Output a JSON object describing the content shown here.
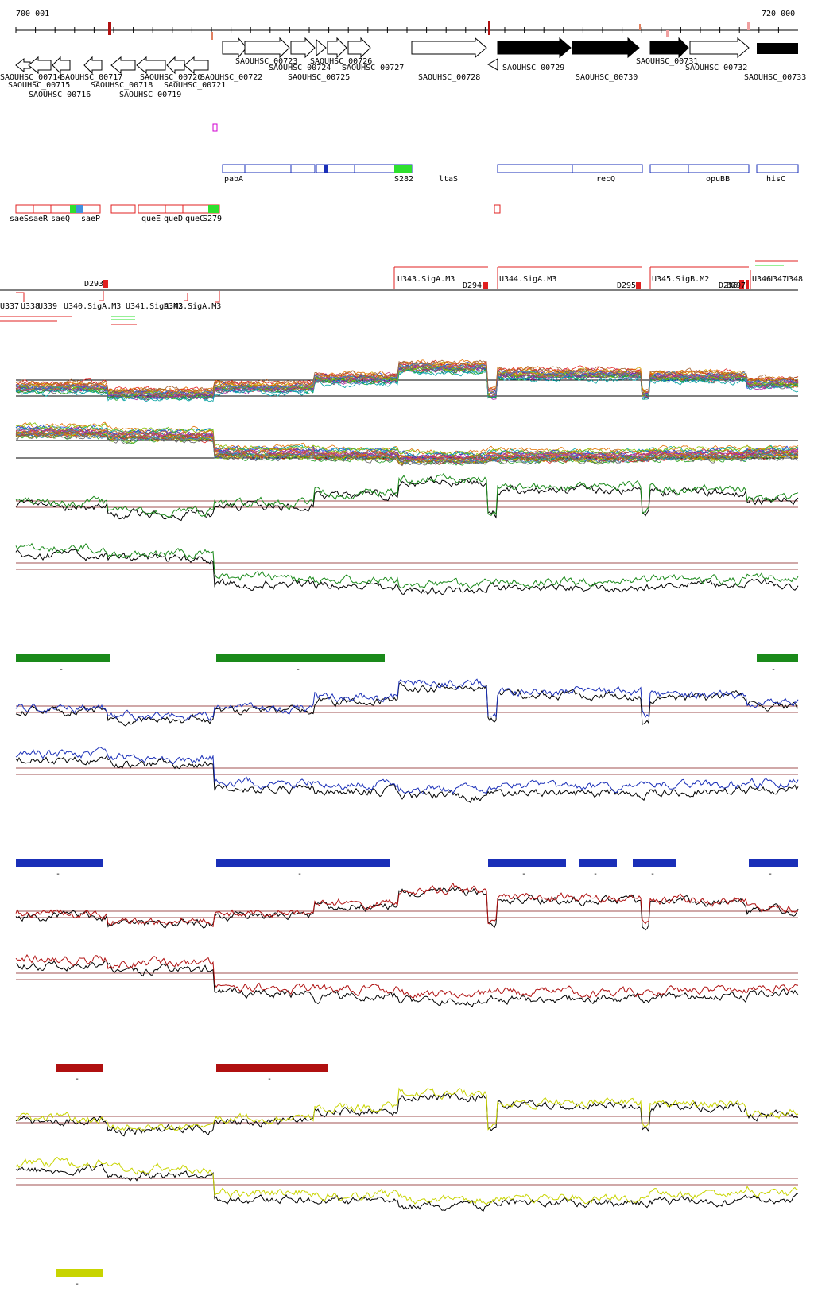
{
  "ruler": {
    "start_label": "700 001",
    "end_label": "720 000"
  },
  "genes": [
    {
      "label": "SAOUHSC_00714",
      "strand": "-"
    },
    {
      "label": "SAOUHSC_00715",
      "strand": "-"
    },
    {
      "label": "SAOUHSC_00716",
      "strand": "-"
    },
    {
      "label": "SAOUHSC_00717",
      "strand": "-"
    },
    {
      "label": "SAOUHSC_00718",
      "strand": "-"
    },
    {
      "label": "SAOUHSC_00719",
      "strand": "-"
    },
    {
      "label": "SAOUHSC_00720",
      "strand": "-"
    },
    {
      "label": "SAOUHSC_00721",
      "strand": "-"
    },
    {
      "label": "SAOUHSC_00722",
      "strand": "+"
    },
    {
      "label": "SAOUHSC_00723",
      "strand": "+"
    },
    {
      "label": "SAOUHSC_00724",
      "strand": "+"
    },
    {
      "label": "SAOUHSC_00725",
      "strand": "+"
    },
    {
      "label": "SAOUHSC_00726",
      "strand": "+"
    },
    {
      "label": "SAOUHSC_00727",
      "strand": "+"
    },
    {
      "label": "SAOUHSC_00728",
      "strand": "+"
    },
    {
      "label": "SAOUHSC_00729",
      "strand": "-"
    },
    {
      "label": "SAOUHSC_00730",
      "strand": "+"
    },
    {
      "label": "SAOUHSC_00731",
      "strand": "+"
    },
    {
      "label": "SAOUHSC_00732",
      "strand": "+"
    },
    {
      "label": "SAOUHSC_00733",
      "strand": "+"
    }
  ],
  "blue_features": [
    "pabA",
    "S282",
    "ltaS",
    "recQ",
    "opuBB",
    "hisC"
  ],
  "red_features": [
    "saeS",
    "saeR",
    "saeQ",
    "saeP",
    "queE",
    "queD",
    "queC",
    "S279"
  ],
  "upper_labels": [
    "D293",
    "U343.SigA.M3",
    "D294",
    "U344.SigA.M3",
    "D295",
    "U345.SigB.M2",
    "D296",
    "D297",
    "U346",
    "U347",
    "U348"
  ],
  "lower_labels": [
    "U337",
    "U338",
    "U339",
    "U340.SigA.M3",
    "U341.SigA.M3",
    "U342.SigA.M3"
  ],
  "colors": {
    "green": "#1a8a1a",
    "blue": "#1a2fb8",
    "red": "#b01010",
    "yellow": "#c8d400",
    "baseline": "#a05050"
  },
  "condition_panels": [
    {
      "color_name": "green",
      "bar_mark": "-"
    },
    {
      "color_name": "blue",
      "bar_mark": "-"
    },
    {
      "color_name": "red",
      "bar_mark": "-"
    },
    {
      "color_name": "yellow",
      "bar_mark": "-"
    }
  ]
}
